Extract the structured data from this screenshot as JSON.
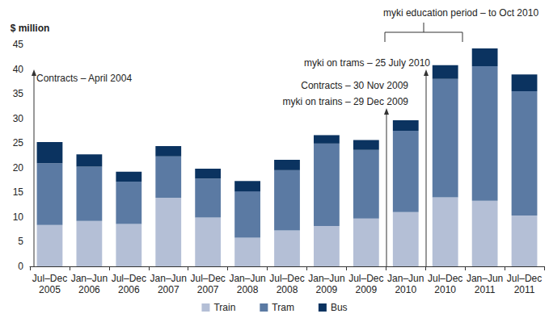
{
  "chart_data": {
    "type": "bar",
    "stacked": true,
    "grid": false,
    "legend": "bottom",
    "y_label": "$ million",
    "categories": [
      "Jul–Dec\n2005",
      "Jan–Jun\n2006",
      "Jul–Dec\n2006",
      "Jan–Jun\n2007",
      "Jul–Dec\n2007",
      "Jan–Jun\n2008",
      "Jul–Dec\n2008",
      "Jan–Jun\n2009",
      "Jul–Dec\n2009",
      "Jan–Jun\n2010",
      "Jul–Dec\n2010",
      "Jan–Jun\n2011",
      "Jul–Dec\n2011"
    ],
    "series": [
      {
        "name": "Train",
        "color": "#b4bfd6",
        "values": [
          8.4,
          9.2,
          8.6,
          13.9,
          9.9,
          5.8,
          7.3,
          8.2,
          9.7,
          11.0,
          14.0,
          13.3,
          10.3
        ]
      },
      {
        "name": "Tram",
        "color": "#5b7aa3",
        "values": [
          12.5,
          11.0,
          8.6,
          8.4,
          7.9,
          9.4,
          12.2,
          16.7,
          13.9,
          16.5,
          24.0,
          27.3,
          25.2
        ]
      },
      {
        "name": "Bus",
        "color": "#0b3360",
        "values": [
          4.3,
          2.5,
          2.0,
          2.1,
          2.0,
          2.1,
          2.1,
          1.7,
          2.0,
          2.1,
          2.8,
          3.6,
          3.4
        ]
      }
    ],
    "ylim": [
      0,
      45
    ],
    "yticks": [
      0,
      5,
      10,
      15,
      20,
      25,
      30,
      35,
      40,
      45
    ],
    "annotations": [
      "Contracts – April 2004",
      "Contracts – 30 Nov 2009",
      "myki on trains – 29 Dec 2009",
      "myki on trams – 25 July 2010",
      "myki education period – to Oct 2010"
    ]
  }
}
